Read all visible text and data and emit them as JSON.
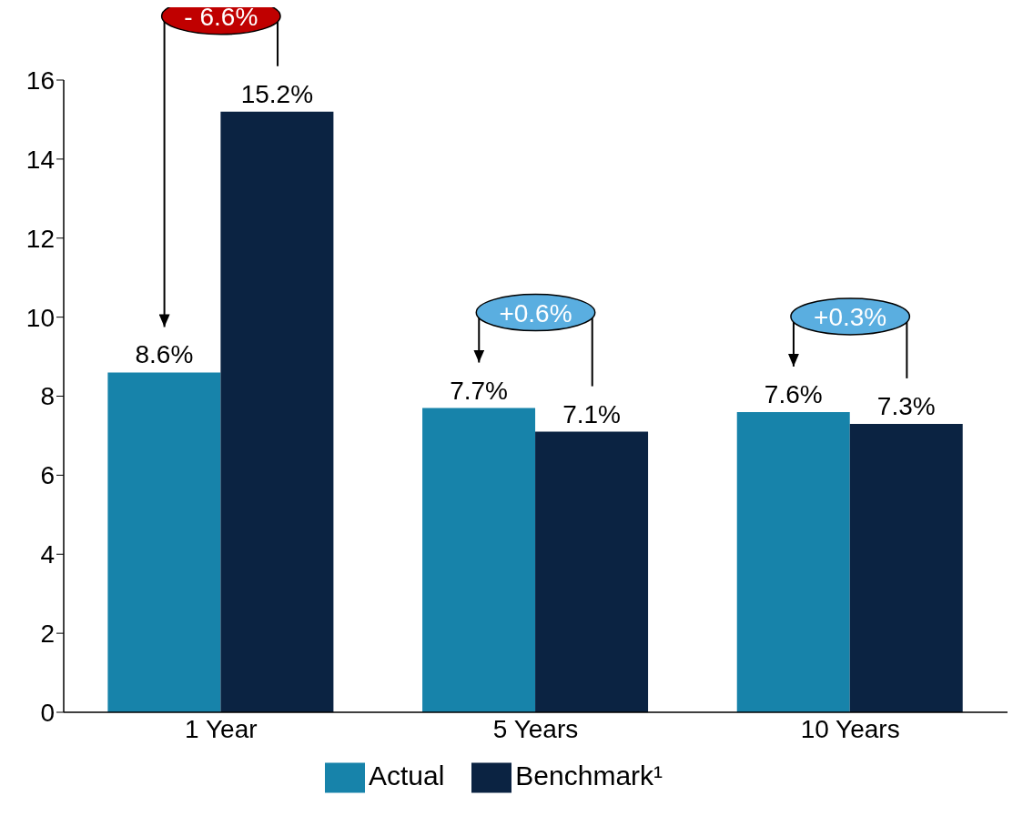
{
  "chart_data": {
    "type": "bar",
    "categories": [
      "1 Year",
      "5 Years",
      "10 Years"
    ],
    "series": [
      {
        "name": "Actual",
        "color": "#1783aa",
        "values": [
          8.6,
          7.7,
          7.6
        ],
        "value_labels": [
          "8.6%",
          "7.7%",
          "7.6%"
        ]
      },
      {
        "name": "Benchmark¹",
        "color": "#0b2342",
        "values": [
          15.2,
          7.1,
          7.3
        ],
        "value_labels": [
          "15.2%",
          "7.1%",
          "7.3%"
        ]
      }
    ],
    "ylim": [
      0,
      16
    ],
    "yticks": [
      0,
      2,
      4,
      6,
      8,
      10,
      12,
      14,
      16
    ],
    "legend": "bottom",
    "annotations": [
      "- 6.6%",
      "+0.6%",
      "+0.3%"
    ]
  }
}
